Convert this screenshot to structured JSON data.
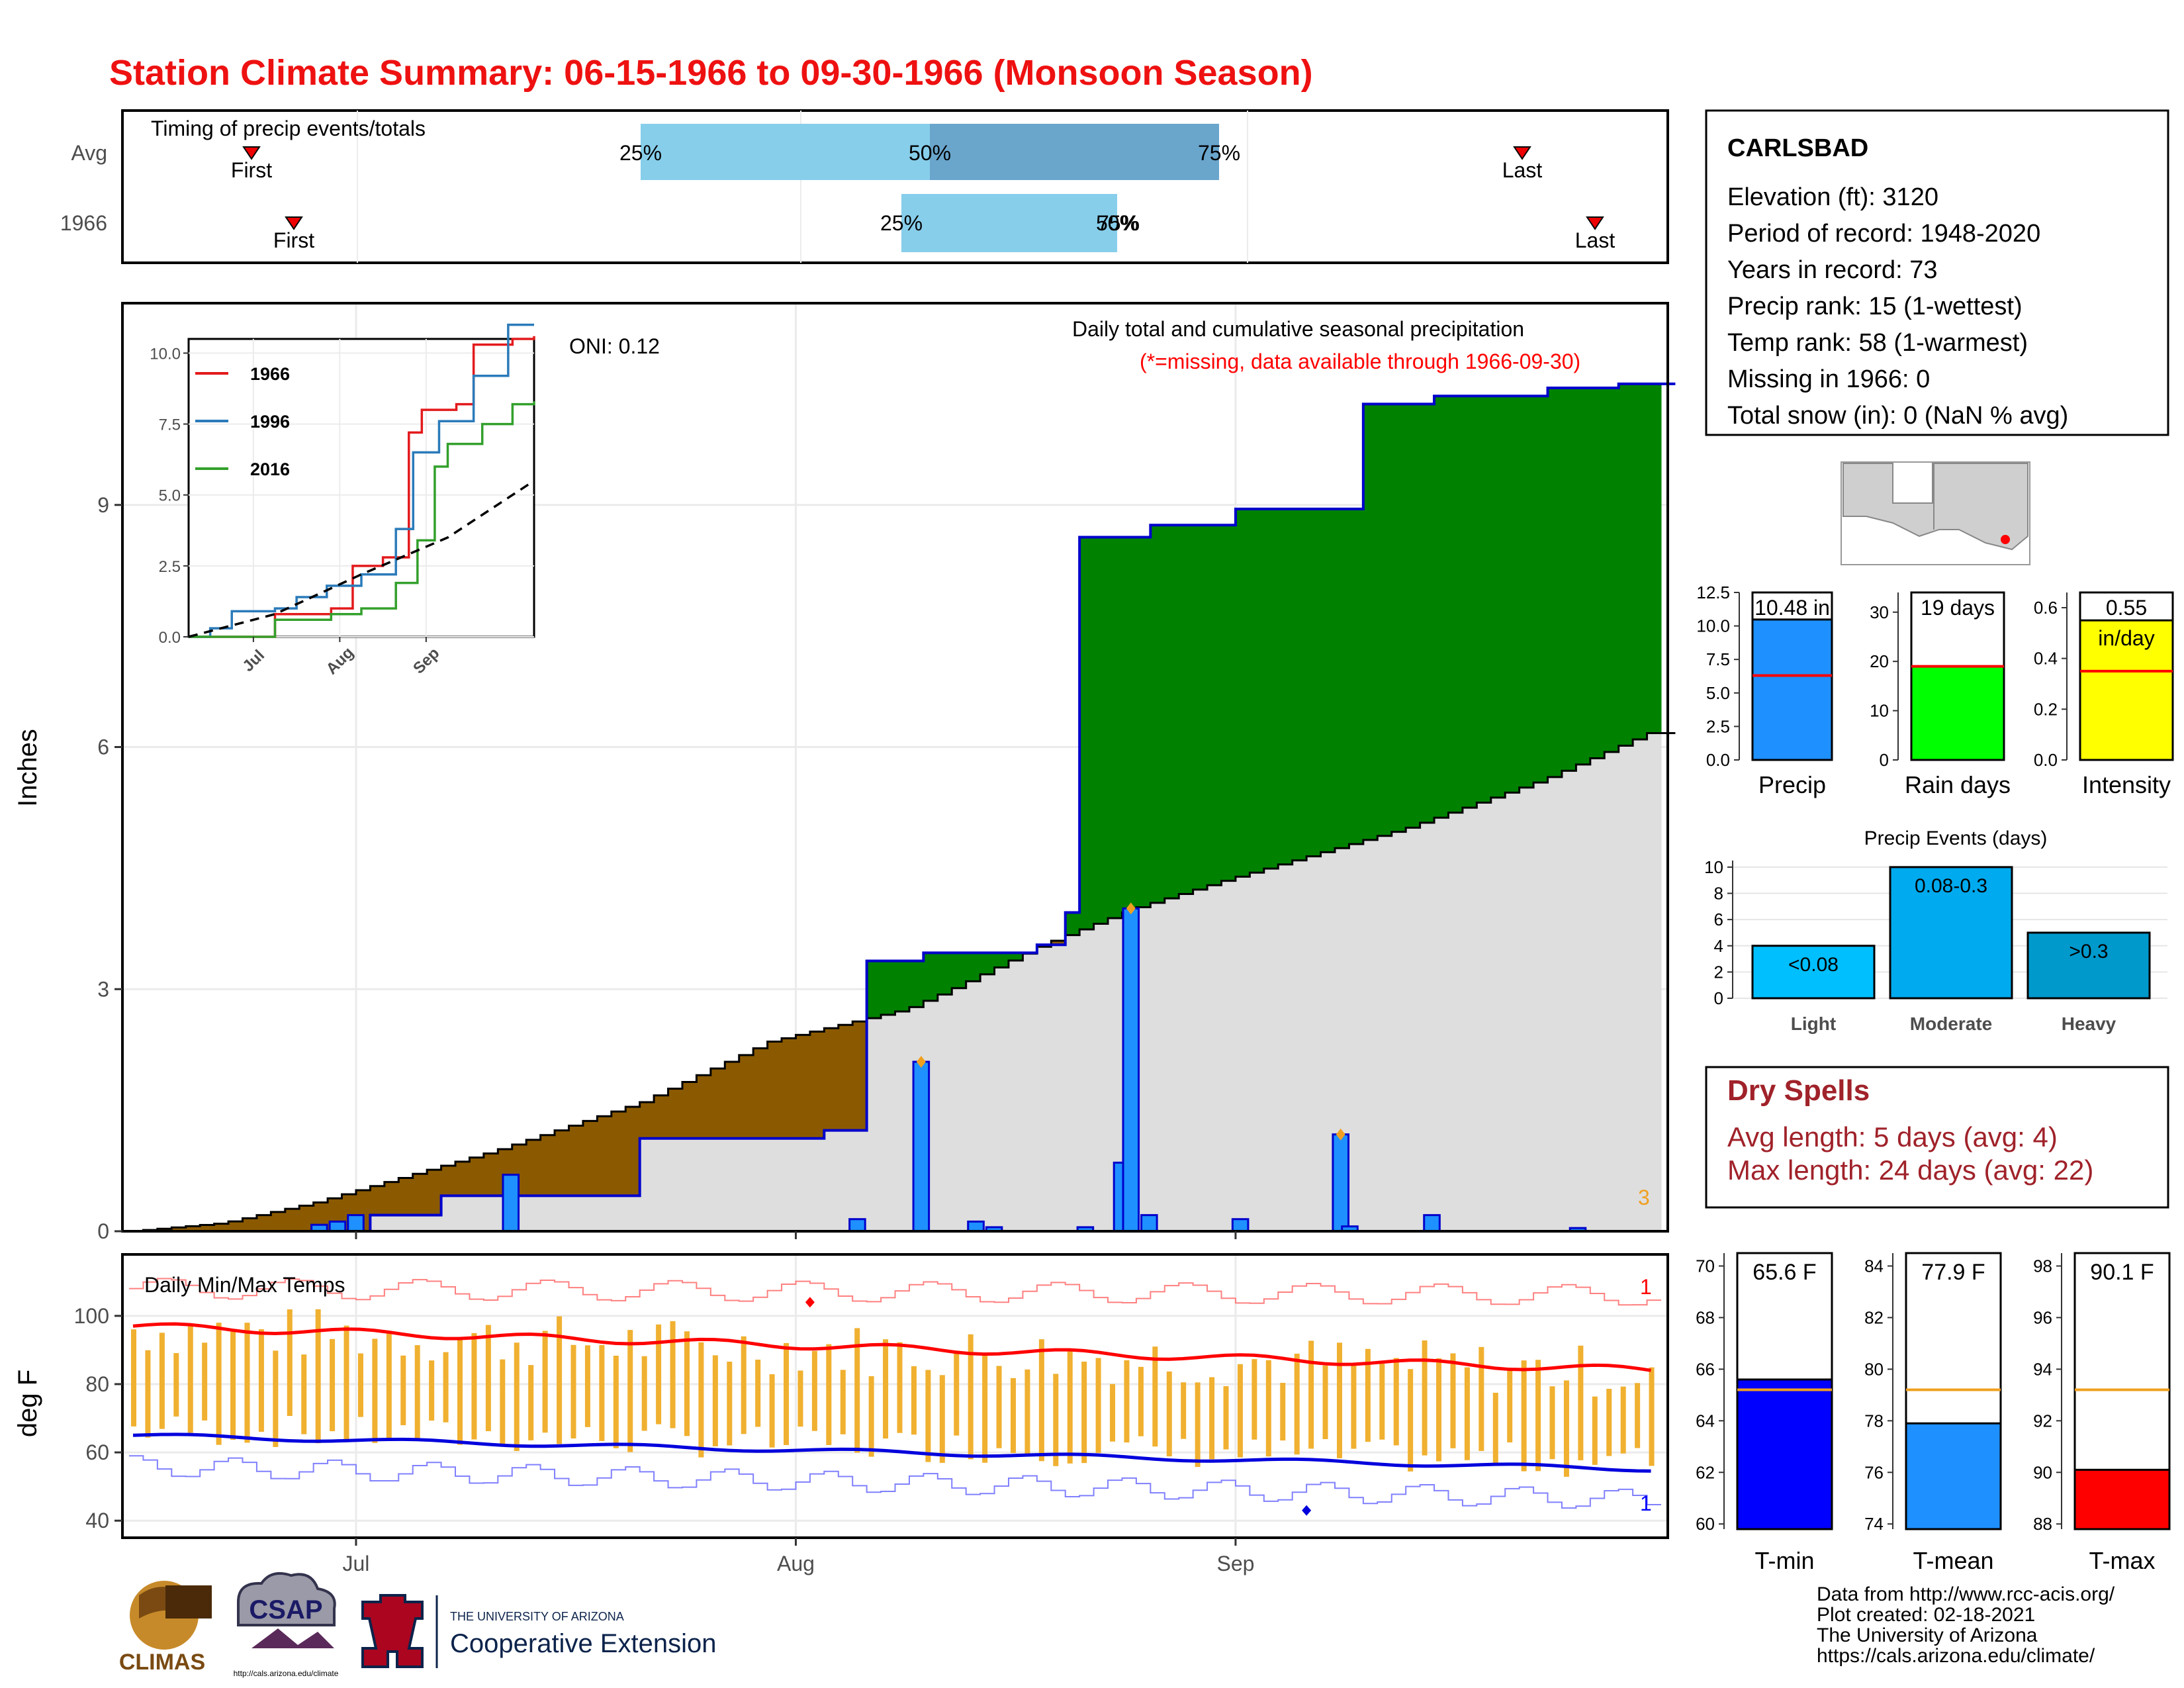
{
  "title": "Station Climate Summary: 06-15-1966 to 09-30-1966 (Monsoon Season)",
  "colors": {
    "title": "#ee1111",
    "brown": "#8b5a00",
    "green": "#008200",
    "blue_bar": "#1e90ff",
    "gray": "#dedede",
    "red": "#ff0000",
    "orange": "#f0a020",
    "dryspell": "#a0222a"
  },
  "timing": {
    "title": "Timing of precip events/totals",
    "rows": [
      "Avg",
      "1966"
    ],
    "avg": {
      "first": "First",
      "p25": "25%",
      "p50": "50%",
      "p75": "75%",
      "last": "Last"
    },
    "y1966": {
      "first": "First",
      "p25": "25%",
      "p50": "50%",
      "p75": "75%",
      "last": "Last"
    }
  },
  "station": {
    "name": "CARLSBAD",
    "lines": [
      "Elevation (ft): 3120",
      "Period of record: 1948-2020",
      "Years in record: 73",
      "Precip rank: 15 (1-wettest)",
      "Temp rank: 58 (1-warmest)",
      "Missing in 1966: 0",
      "Total snow (in): 0 (NaN % avg)"
    ]
  },
  "main": {
    "ylabel": "Inches",
    "yticks": [
      "0",
      "3",
      "6",
      "9"
    ],
    "xticks": [
      "Jul",
      "Aug",
      "Sep"
    ],
    "subtitle1": "Daily total and cumulative seasonal precipitation",
    "subtitle2": "(*=missing, data available through 1966-09-30)",
    "oni": "ONI: 0.12",
    "corner_count": "3"
  },
  "inset": {
    "yticks": [
      "0.0",
      "2.5",
      "5.0",
      "7.5",
      "10.0"
    ],
    "xticks": [
      "Jul",
      "Aug",
      "Sep"
    ],
    "legend": [
      "1966",
      "1996",
      "2016"
    ]
  },
  "temps": {
    "title": "Daily Min/Max Temps",
    "ylabel": "deg F",
    "yticks": [
      "40",
      "60",
      "80",
      "100"
    ],
    "xticks": [
      "Jul",
      "Aug",
      "Sep"
    ],
    "count_max": "1",
    "count_min": "1"
  },
  "small_bars": {
    "precip": {
      "label": "Precip",
      "value_text": "10.48 in",
      "yticks": [
        "0.0",
        "2.5",
        "5.0",
        "7.5",
        "10.0",
        "12.5"
      ]
    },
    "raindays": {
      "label": "Rain days",
      "value_text": "19 days",
      "yticks": [
        "0",
        "10",
        "20",
        "30"
      ]
    },
    "intensity": {
      "label": "Intensity",
      "value_text": "0.55",
      "unit_text": "in/day",
      "yticks": [
        "0.0",
        "0.2",
        "0.4",
        "0.6"
      ]
    }
  },
  "events": {
    "title": "Precip Events (days)",
    "yticks": [
      "0",
      "2",
      "4",
      "6",
      "8",
      "10"
    ],
    "categories": [
      "Light",
      "Moderate",
      "Heavy"
    ],
    "bar_labels": [
      "<0.08",
      "0.08-0.3",
      ">0.3"
    ]
  },
  "dry_spells": {
    "title": "Dry Spells",
    "avg_line": "Avg length: 5 days (avg: 4)",
    "max_line": "Max length: 24 days (avg: 22)"
  },
  "temp_boxes": {
    "tmin": {
      "label": "T-min",
      "value_text": "65.6 F",
      "yticks": [
        "60",
        "62",
        "64",
        "66",
        "68",
        "70"
      ]
    },
    "tmean": {
      "label": "T-mean",
      "value_text": "77.9 F",
      "yticks": [
        "74",
        "76",
        "78",
        "80",
        "82",
        "84"
      ]
    },
    "tmax": {
      "label": "T-max",
      "value_text": "90.1 F",
      "yticks": [
        "88",
        "90",
        "92",
        "94",
        "96",
        "98"
      ]
    }
  },
  "footer": {
    "lines": [
      "Data from http://www.rcc-acis.org/",
      "Plot created: 02-18-2021",
      "The University of Arizona",
      "https://cals.arizona.edu/climate/"
    ],
    "logos": {
      "climas": "CLIMAS",
      "csap": "CSAP",
      "csap_url": "http://cals.arizona.edu/climate",
      "ua1": "THE UNIVERSITY OF ARIZONA",
      "ua2": "Cooperative Extension"
    }
  },
  "chart_data": [
    {
      "type": "area",
      "name": "daily and cumulative precipitation",
      "x_start": "1966-06-15",
      "x_end": "1966-09-30",
      "ylim": [
        0,
        11.5
      ],
      "cumulative_1966": [
        [
          0,
          0
        ],
        [
          26,
          0.2
        ],
        [
          33,
          0.44
        ],
        [
          55,
          1.15
        ],
        [
          76,
          1.25
        ],
        [
          80,
          3.35
        ],
        [
          87,
          3.45
        ],
        [
          98,
          3.55
        ],
        [
          102,
          3.95
        ],
        [
          104,
          8.6
        ],
        [
          111,
          8.75
        ],
        [
          121,
          8.95
        ],
        [
          134,
          10.25
        ],
        [
          142,
          10.35
        ],
        [
          154,
          10.45
        ],
        [
          163,
          10.5
        ],
        [
          168,
          10.48
        ]
      ],
      "cumulative_avg": [
        [
          0,
          0
        ],
        [
          10,
          0.1
        ],
        [
          20,
          0.35
        ],
        [
          40,
          1.0
        ],
        [
          56,
          1.6
        ],
        [
          70,
          2.35
        ],
        [
          85,
          2.75
        ],
        [
          90,
          3.0
        ],
        [
          100,
          3.55
        ],
        [
          110,
          4.0
        ],
        [
          120,
          4.35
        ],
        [
          140,
          5.0
        ],
        [
          155,
          5.6
        ],
        [
          168,
          6.25
        ]
      ],
      "daily_1966": [
        [
          20,
          0.08
        ],
        [
          22,
          0.12
        ],
        [
          24,
          0.2
        ],
        [
          41,
          0.7
        ],
        [
          79,
          0.15
        ],
        [
          86,
          2.1
        ],
        [
          92,
          0.12
        ],
        [
          94,
          0.05
        ],
        [
          104,
          0.05
        ],
        [
          108,
          0.85
        ],
        [
          109,
          4.0
        ],
        [
          111,
          0.2
        ],
        [
          121,
          0.15
        ],
        [
          132,
          1.2
        ],
        [
          133,
          0.06
        ],
        [
          142,
          0.2
        ],
        [
          158,
          0.04
        ]
      ],
      "xticks": [
        "Jul",
        "Aug",
        "Sep"
      ]
    },
    {
      "type": "line",
      "name": "inset cumulative comparison",
      "series": [
        {
          "name": "1966",
          "points": [
            [
              0,
              0
            ],
            [
              20,
              0.8
            ],
            [
              33,
              1.0
            ],
            [
              38,
              2.5
            ],
            [
              45,
              2.8
            ],
            [
              51,
              7.2
            ],
            [
              54,
              8.0
            ],
            [
              62,
              8.2
            ],
            [
              66,
              10.3
            ],
            [
              75,
              10.5
            ],
            [
              80,
              10.6
            ]
          ]
        },
        {
          "name": "1996",
          "points": [
            [
              0,
              0
            ],
            [
              5,
              0.3
            ],
            [
              10,
              0.9
            ],
            [
              20,
              1.0
            ],
            [
              25,
              1.4
            ],
            [
              32,
              1.8
            ],
            [
              40,
              2.2
            ],
            [
              48,
              3.8
            ],
            [
              52,
              6.5
            ],
            [
              58,
              7.6
            ],
            [
              66,
              9.2
            ],
            [
              74,
              11.0
            ]
          ]
        },
        {
          "name": "2016",
          "points": [
            [
              0,
              0
            ],
            [
              20,
              0.6
            ],
            [
              33,
              0.8
            ],
            [
              40,
              1.0
            ],
            [
              48,
              1.9
            ],
            [
              53,
              3.4
            ],
            [
              57,
              6.0
            ],
            [
              60,
              6.8
            ],
            [
              68,
              7.5
            ],
            [
              75,
              8.2
            ],
            [
              80,
              8.3
            ]
          ]
        }
      ],
      "avg_line": [
        [
          0,
          0
        ],
        [
          20,
          0.8
        ],
        [
          40,
          2.2
        ],
        [
          60,
          3.5
        ],
        [
          80,
          5.5
        ]
      ],
      "ylim": [
        0,
        10.5
      ]
    },
    {
      "type": "bar",
      "name": "daily temperature",
      "ylim": [
        35,
        118
      ],
      "tmax_range": [
        95,
        108
      ],
      "tmin_range": [
        50,
        62
      ],
      "normal_max_start": 97,
      "normal_max_end": 84,
      "normal_min_start": 65,
      "normal_min_end": 55
    },
    {
      "type": "bar",
      "name": "summary bars",
      "precip_in": 10.48,
      "precip_avg": 6.3,
      "rain_days": 19,
      "rain_days_avg": 19,
      "intensity": 0.55,
      "intensity_avg": 0.35,
      "precip_events": {
        "Light": 4,
        "Moderate": 10,
        "Heavy": 5
      },
      "tmin": 65.6,
      "tmin_avg": 65.2,
      "tmean": 77.9,
      "tmean_avg": 79.2,
      "tmax": 90.1,
      "tmax_avg": 93.2
    }
  ]
}
